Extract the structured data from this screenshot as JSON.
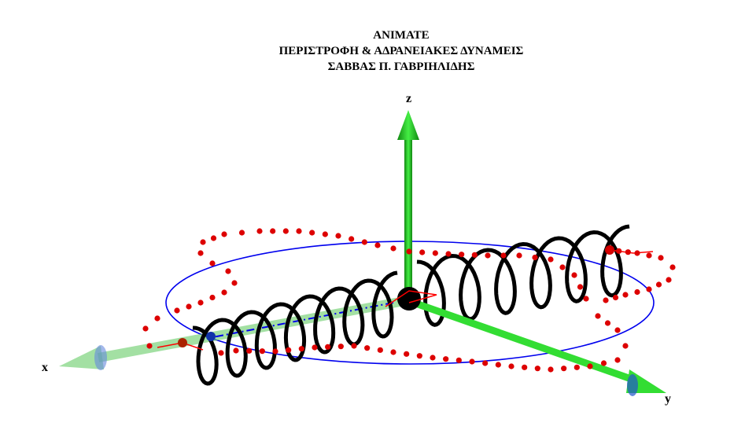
{
  "title": {
    "line1": "ANIMATE",
    "line2": "ΠΕΡΙΣΤΡΟΦΗ & ΑΔΡΑΝΕΙΑΚΕΣ ΔΥΝΑΜΕΙΣ",
    "line3": "ΣΑΒΒΑΣ Π. ΓΑΒΡΙΗΛΙΔΗΣ"
  },
  "axes": {
    "x": "x",
    "y": "y",
    "z": "z"
  },
  "colors": {
    "axis": "#22cc22",
    "orbit_circle": "#0000ee",
    "spring": "#000000",
    "trajectory_points": "#dd0000",
    "mass": "#000000",
    "marker": "#1133aa"
  }
}
